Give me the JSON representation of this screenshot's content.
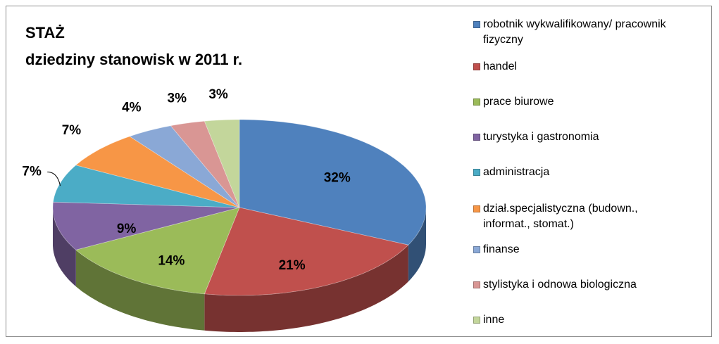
{
  "chart_data": {
    "type": "pie",
    "title": "STAŻ",
    "subtitle": "dziedziny stanowisk w 2011 r.",
    "categories": [
      "robotnik wykwalifikowany/ pracownik fizyczny",
      "handel",
      "prace biurowe",
      "turystyka i gastronomia",
      "administracja",
      "dział.specjalistyczna (budown., informat., stomat.)",
      "finanse",
      "stylistyka i odnowa biologiczna",
      "inne"
    ],
    "values": [
      32,
      21,
      14,
      9,
      7,
      7,
      4,
      3,
      3
    ],
    "value_labels": [
      "32%",
      "21%",
      "14%",
      "9%",
      "7%",
      "7%",
      "4%",
      "3%",
      "3%"
    ],
    "colors": [
      "#4f81bd",
      "#c0504d",
      "#9bbb59",
      "#8064a2",
      "#4bacc6",
      "#f79646",
      "#8aa8d6",
      "#d99694",
      "#c3d69b"
    ],
    "legend": "right"
  }
}
